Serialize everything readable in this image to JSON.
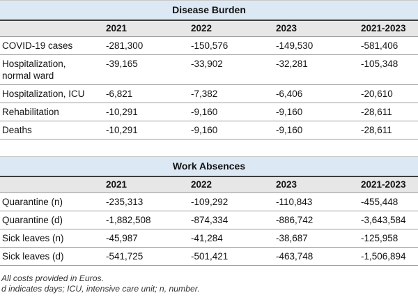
{
  "colors": {
    "title_band": "#dce9f5",
    "header_band": "#e7e7e7",
    "heavy_rule": "#3d3d3d",
    "light_rule": "#9c9c9c",
    "faint_rule": "#c8c8c8",
    "text": "#121212"
  },
  "tables": [
    {
      "title": "Disease Burden",
      "columns": [
        "",
        "2021",
        "2022",
        "2023",
        "2021-2023"
      ],
      "rows": [
        {
          "label": "COVID-19 cases",
          "values": [
            "-281,300",
            "-150,576",
            "-149,530",
            "-581,406"
          ]
        },
        {
          "label": "Hospitalization,\nnormal ward",
          "values": [
            "-39,165",
            "-33,902",
            "-32,281",
            "-105,348"
          ]
        },
        {
          "label": "Hospitalization, ICU",
          "values": [
            "-6,821",
            "-7,382",
            "-6,406",
            "-20,610"
          ]
        },
        {
          "label": "Rehabilitation",
          "values": [
            "-10,291",
            "-9,160",
            "-9,160",
            "-28,611"
          ]
        },
        {
          "label": "Deaths",
          "values": [
            "-10,291",
            "-9,160",
            "-9,160",
            "-28,611"
          ]
        }
      ]
    },
    {
      "title": "Work Absences",
      "columns": [
        "",
        "2021",
        "2022",
        "2023",
        "2021-2023"
      ],
      "rows": [
        {
          "label": "Quarantine (n)",
          "values": [
            "-235,313",
            "-109,292",
            "-110,843",
            "-455,448"
          ]
        },
        {
          "label": "Quarantine (d)",
          "values": [
            "-1,882,508",
            "-874,334",
            "-886,742",
            "-3,643,584"
          ]
        },
        {
          "label": "Sick leaves (n)",
          "values": [
            "-45,987",
            "-41,284",
            "-38,687",
            "-125,958"
          ]
        },
        {
          "label": "Sick leaves (d)",
          "values": [
            "-541,725",
            "-501,421",
            "-463,748",
            "-1,506,894"
          ]
        }
      ]
    }
  ],
  "footnotes": [
    "All costs provided in Euros.",
    "d indicates days; ICU, intensive care unit; n, number."
  ]
}
